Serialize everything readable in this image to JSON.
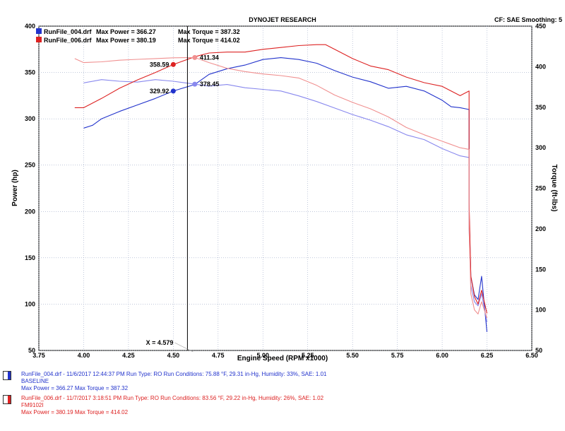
{
  "header": {
    "title": "DYNOJET RESEARCH",
    "cf_label": "CF: SAE  Smoothing: 5"
  },
  "legend": [
    {
      "file": "RunFile_004.drf",
      "max_power_label": "Max Power = 366.27",
      "max_torque_label": "Max Torque = 387.32",
      "color": "#2233cc"
    },
    {
      "file": "RunFile_006.drf",
      "max_power_label": "Max Power = 380.19",
      "max_torque_label": "Max Torque = 414.02",
      "color": "#dd2222"
    }
  ],
  "cursor": {
    "label": "X = 4.579",
    "x": 4.579
  },
  "runs": [
    {
      "line1": "RunFile_004.drf - 11/6/2017 12:44:37 PM  Run Type: RO  Run Conditions: 75.88 °F, 29.31 in-Hg,  Humidity: 33%, SAE: 1.01",
      "line2": "BASELINE",
      "line3": "Max Power = 366.27  Max Torque = 387.32",
      "color": "#2233cc"
    },
    {
      "line1": "RunFile_006.drf - 11/7/2017 3:18:51 PM  Run Type: RO  Run Conditions: 83.56 °F, 29.22 in-Hg,  Humidity: 26%, SAE: 1.02",
      "line2": "FM9102I",
      "line3": "Max Power = 380.19  Max Torque = 414.02",
      "color": "#dd2222"
    }
  ],
  "chart_data": {
    "type": "line",
    "xlabel": "Engine Speed (RPM x1000)",
    "ylabel": "Power (hp)",
    "y2label": "Torque (ft-lbs)",
    "xlim": [
      3.75,
      6.5
    ],
    "ylim": [
      50,
      400
    ],
    "y2lim": [
      50,
      450
    ],
    "xticks": [
      "3.75",
      "4.00",
      "4.25",
      "4.50",
      "4.75",
      "5.00",
      "5.25",
      "5.50",
      "5.75",
      "6.00",
      "6.25",
      "6.50"
    ],
    "yticks": [
      "50",
      "100",
      "150",
      "200",
      "250",
      "300",
      "350",
      "400"
    ],
    "y2ticks": [
      "50",
      "100",
      "150",
      "200",
      "250",
      "300",
      "350",
      "400",
      "450"
    ],
    "grid": true,
    "cursor_x": 4.579,
    "series": [
      {
        "name": "RunFile_004.drf",
        "quantity": "power",
        "axis": "left",
        "color": "#2233cc",
        "x": [
          4.0,
          4.05,
          4.1,
          4.2,
          4.3,
          4.4,
          4.5,
          4.62,
          4.7,
          4.8,
          4.9,
          5.0,
          5.1,
          5.2,
          5.3,
          5.4,
          5.5,
          5.6,
          5.7,
          5.8,
          5.9,
          6.0,
          6.05,
          6.1,
          6.15,
          6.15,
          6.16,
          6.18,
          6.2,
          6.22,
          6.25
        ],
        "y": [
          290,
          293,
          300,
          308,
          315,
          322,
          330,
          337,
          348,
          354,
          358,
          364,
          366,
          364,
          360,
          352,
          345,
          340,
          333,
          335,
          330,
          320,
          313,
          312,
          310,
          200,
          130,
          110,
          105,
          130,
          70
        ]
      },
      {
        "name": "RunFile_004.drf",
        "quantity": "torque",
        "axis": "right",
        "color": "#8888ee",
        "x": [
          4.0,
          4.1,
          4.2,
          4.3,
          4.4,
          4.5,
          4.62,
          4.7,
          4.8,
          4.9,
          5.0,
          5.1,
          5.2,
          5.3,
          5.4,
          5.5,
          5.6,
          5.7,
          5.8,
          5.9,
          6.0,
          6.1,
          6.15,
          6.15,
          6.16,
          6.18,
          6.2,
          6.22,
          6.25
        ],
        "y": [
          380,
          384,
          382,
          381,
          384,
          382,
          378.45,
          376,
          378,
          374,
          372,
          370,
          364,
          357,
          349,
          341,
          334,
          326,
          316,
          310,
          299,
          290,
          288,
          200,
          130,
          110,
          105,
          120,
          85
        ]
      },
      {
        "name": "RunFile_006.drf",
        "quantity": "power",
        "axis": "left",
        "color": "#dd2222",
        "x": [
          3.95,
          4.0,
          4.1,
          4.2,
          4.3,
          4.4,
          4.5,
          4.62,
          4.7,
          4.8,
          4.9,
          5.0,
          5.1,
          5.2,
          5.3,
          5.35,
          5.4,
          5.5,
          5.6,
          5.7,
          5.8,
          5.9,
          6.0,
          6.1,
          6.15,
          6.15,
          6.16,
          6.18,
          6.2,
          6.22,
          6.25
        ],
        "y": [
          312,
          312,
          322,
          333,
          342,
          350,
          358.59,
          367,
          371,
          372,
          372,
          375,
          377,
          379,
          380,
          380,
          375,
          365,
          357,
          353,
          345,
          339,
          335,
          325,
          330,
          210,
          130,
          108,
          100,
          115,
          90
        ]
      },
      {
        "name": "RunFile_006.drf",
        "quantity": "torque",
        "axis": "right",
        "color": "#f09090",
        "x": [
          3.95,
          4.0,
          4.1,
          4.2,
          4.3,
          4.4,
          4.5,
          4.62,
          4.7,
          4.8,
          4.9,
          5.0,
          5.1,
          5.2,
          5.3,
          5.4,
          5.5,
          5.6,
          5.7,
          5.8,
          5.9,
          6.0,
          6.1,
          6.15,
          6.15,
          6.16,
          6.18,
          6.2,
          6.22,
          6.25
        ],
        "y": [
          410,
          405,
          406,
          408,
          409,
          410,
          411,
          411.34,
          405,
          398,
          394,
          391,
          389,
          386,
          377,
          365,
          356,
          348,
          338,
          325,
          316,
          308,
          300,
          298,
          200,
          120,
          100,
          95,
          110,
          90
        ]
      }
    ],
    "annotations": [
      {
        "x": 4.5,
        "y": 329.92,
        "label": "329.92",
        "axis": "left",
        "color": "#2233cc"
      },
      {
        "x": 4.5,
        "y": 358.59,
        "label": "358.59",
        "axis": "left",
        "color": "#dd2222"
      },
      {
        "x": 4.62,
        "y": 378.45,
        "label": "378.45",
        "axis": "right",
        "color": "#8888ee"
      },
      {
        "x": 4.62,
        "y": 411.34,
        "label": "411.34",
        "axis": "right",
        "color": "#f09090"
      }
    ]
  }
}
